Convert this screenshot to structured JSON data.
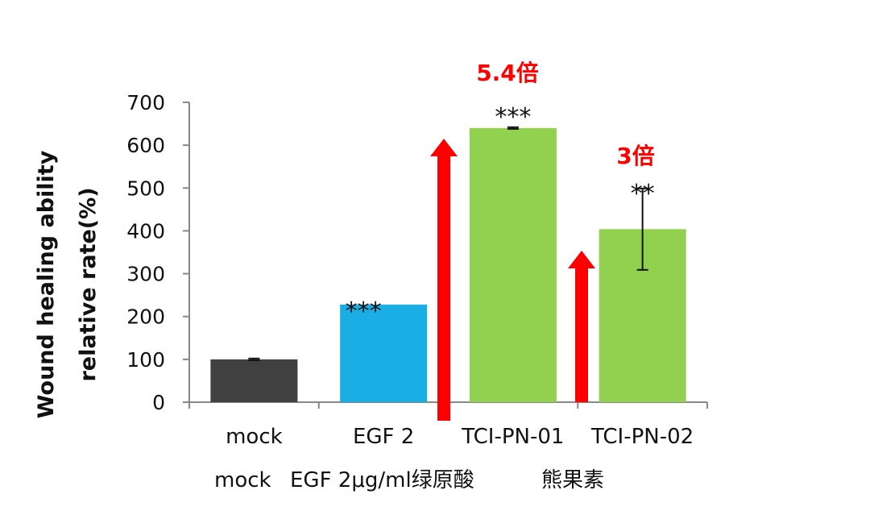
{
  "chart_data": {
    "type": "bar",
    "categories": [
      "mock",
      "EGF 2",
      "TCI-PN-01",
      "TCI-PN-02"
    ],
    "values": [
      100,
      228,
      640,
      404
    ],
    "errors": [
      2,
      0,
      2,
      95
    ],
    "significance": [
      "",
      "***",
      "***",
      "**"
    ],
    "colors": [
      "#404040",
      "#1aaee5",
      "#92d050",
      "#92d050"
    ],
    "ylabel_line1": "Wound healing ability",
    "ylabel_line2": "relative rate(%)",
    "ylim": [
      0,
      700
    ],
    "yticks": [
      0,
      100,
      200,
      300,
      400,
      500,
      600,
      700
    ],
    "sublabels": {
      "mock": "mock",
      "egf": "EGF 2μg/ml绿原酸",
      "bear": "熊果素"
    },
    "fold_annotations": [
      {
        "label": "5.4倍",
        "category": "TCI-PN-01",
        "color": "#ff0000"
      },
      {
        "label": "3倍",
        "category": "TCI-PN-02",
        "color": "#ff0000"
      }
    ],
    "grid": false,
    "legend": "none"
  }
}
